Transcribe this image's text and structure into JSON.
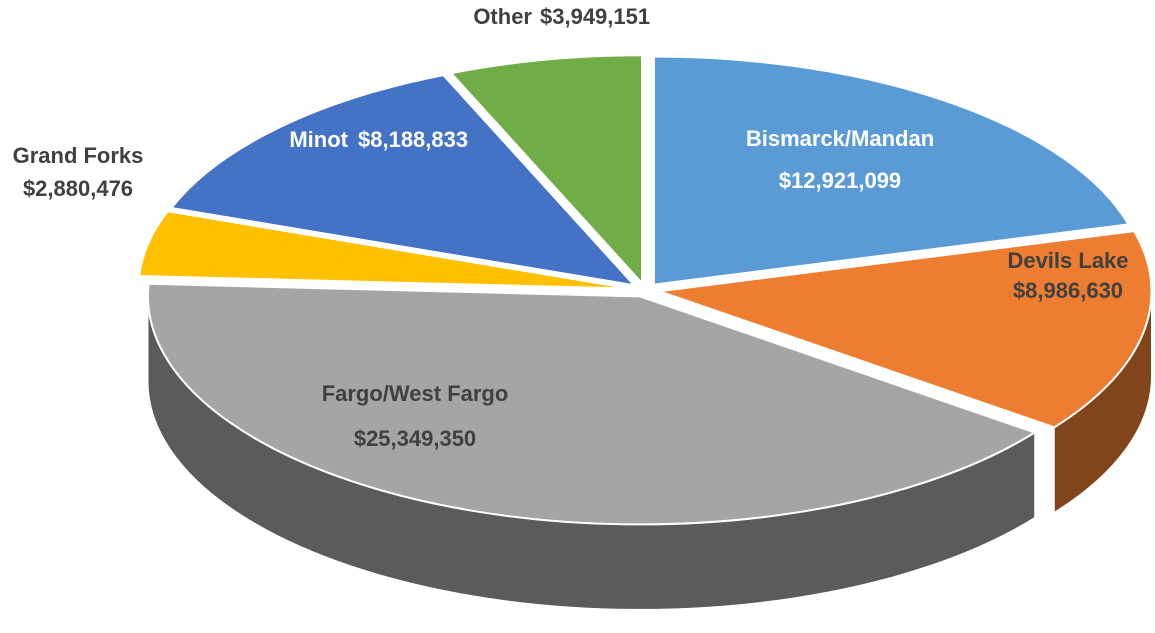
{
  "chart_data": {
    "type": "pie",
    "categories": [
      "Bismarck/Mandan",
      "Devils Lake",
      "Fargo/West Fargo",
      "Grand Forks",
      "Minot",
      "Other"
    ],
    "values": [
      12921099,
      8986630,
      25349350,
      2880476,
      8188833,
      3949151
    ],
    "value_labels": [
      "$12,921,099",
      "$8,986,630",
      "$25,349,350",
      "$2,880,476",
      "$8,188,833",
      "$3,949,151"
    ],
    "colors": [
      "#5b9bd5",
      "#ed7d31",
      "#a5a5a5",
      "#ffc000",
      "#4472c4",
      "#70ad47"
    ]
  }
}
